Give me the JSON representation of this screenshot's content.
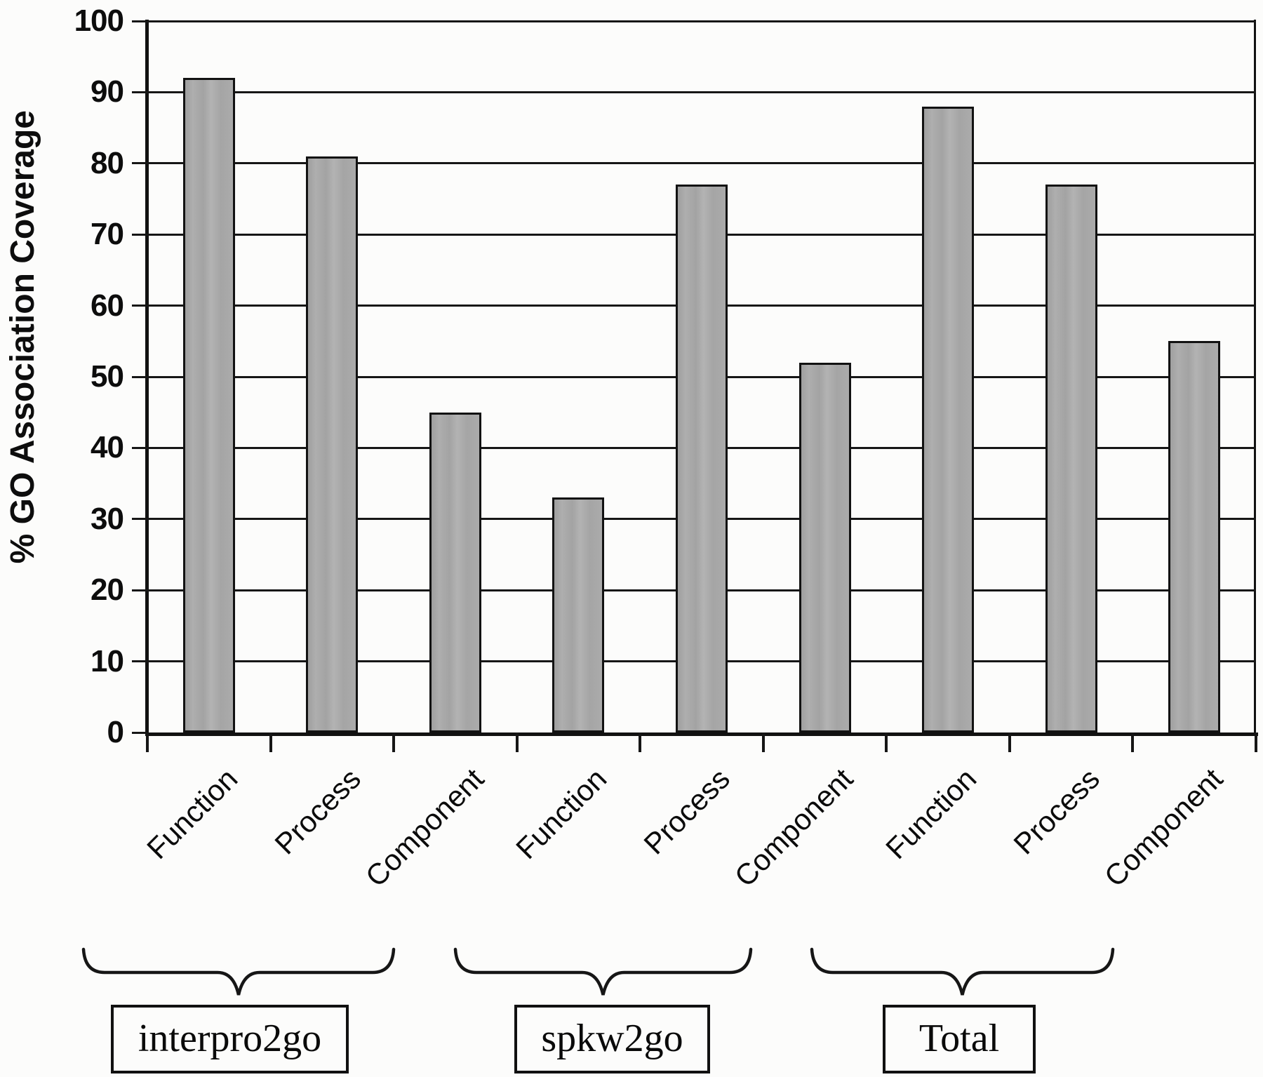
{
  "chart_data": {
    "type": "bar",
    "title": "",
    "ylabel": "% GO Association Coverage",
    "xlabel": "",
    "ylim": [
      0,
      100
    ],
    "yticks": [
      0,
      10,
      20,
      30,
      40,
      50,
      60,
      70,
      80,
      90,
      100
    ],
    "grid": "horizontal",
    "legend_position": "none",
    "bar_color_hex": "#a8a8a8",
    "categories": [
      "Function",
      "Process",
      "Component",
      "Function",
      "Process",
      "Component",
      "Function",
      "Process",
      "Component"
    ],
    "values": [
      92,
      81,
      45,
      33,
      77,
      52,
      88,
      77,
      55
    ],
    "groups": [
      {
        "label": "interpro2go",
        "categories": [
          "Function",
          "Process",
          "Component"
        ],
        "values": [
          92,
          81,
          45
        ]
      },
      {
        "label": "spkw2go",
        "categories": [
          "Function",
          "Process",
          "Component"
        ],
        "values": [
          33,
          77,
          52
        ]
      },
      {
        "label": "Total",
        "categories": [
          "Function",
          "Process",
          "Component"
        ],
        "values": [
          88,
          77,
          55
        ]
      }
    ]
  }
}
